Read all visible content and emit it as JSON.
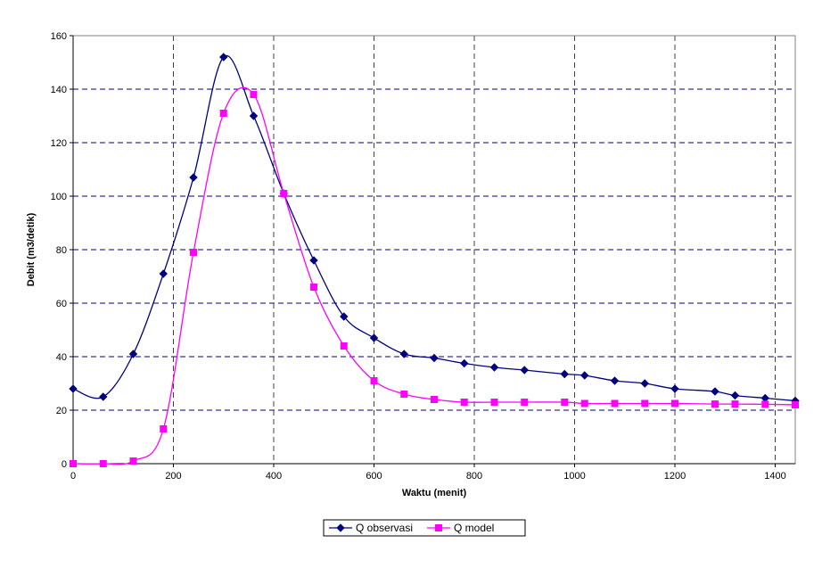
{
  "chart_data": {
    "type": "line",
    "title": "",
    "xlabel": "Waktu (menit)",
    "ylabel": "Debit (m3/detik)",
    "xlim": [
      0,
      1440
    ],
    "ylim": [
      0,
      160
    ],
    "x_ticks": [
      0,
      200,
      400,
      600,
      800,
      1000,
      1200,
      1400
    ],
    "y_ticks": [
      0,
      20,
      40,
      60,
      80,
      100,
      120,
      140,
      160
    ],
    "grid": true,
    "legend_position": "bottom",
    "series": [
      {
        "name": "Q observasi",
        "color": "#000080",
        "marker": "diamond",
        "x": [
          0,
          60,
          120,
          180,
          240,
          300,
          360,
          420,
          480,
          540,
          600,
          660,
          720,
          780,
          840,
          900,
          980,
          1020,
          1080,
          1140,
          1200,
          1280,
          1320,
          1380,
          1440
        ],
        "y": [
          28,
          25,
          41,
          71,
          107,
          152,
          130,
          101,
          76,
          55,
          47,
          41,
          39.5,
          37.5,
          36,
          35,
          33.5,
          33,
          31,
          30,
          28,
          27,
          25.5,
          24.5,
          23.5
        ]
      },
      {
        "name": "Q model",
        "color": "#FF00FF",
        "marker": "square",
        "x": [
          0,
          60,
          120,
          180,
          240,
          300,
          360,
          420,
          480,
          540,
          600,
          660,
          720,
          780,
          840,
          900,
          980,
          1020,
          1080,
          1140,
          1200,
          1280,
          1320,
          1380,
          1440
        ],
        "y": [
          0,
          0,
          1,
          13,
          79,
          131,
          138,
          101,
          66,
          44,
          31,
          26,
          24,
          23,
          23,
          23,
          23,
          22.5,
          22.5,
          22.5,
          22.5,
          22.3,
          22.3,
          22.2,
          22
        ]
      }
    ]
  }
}
